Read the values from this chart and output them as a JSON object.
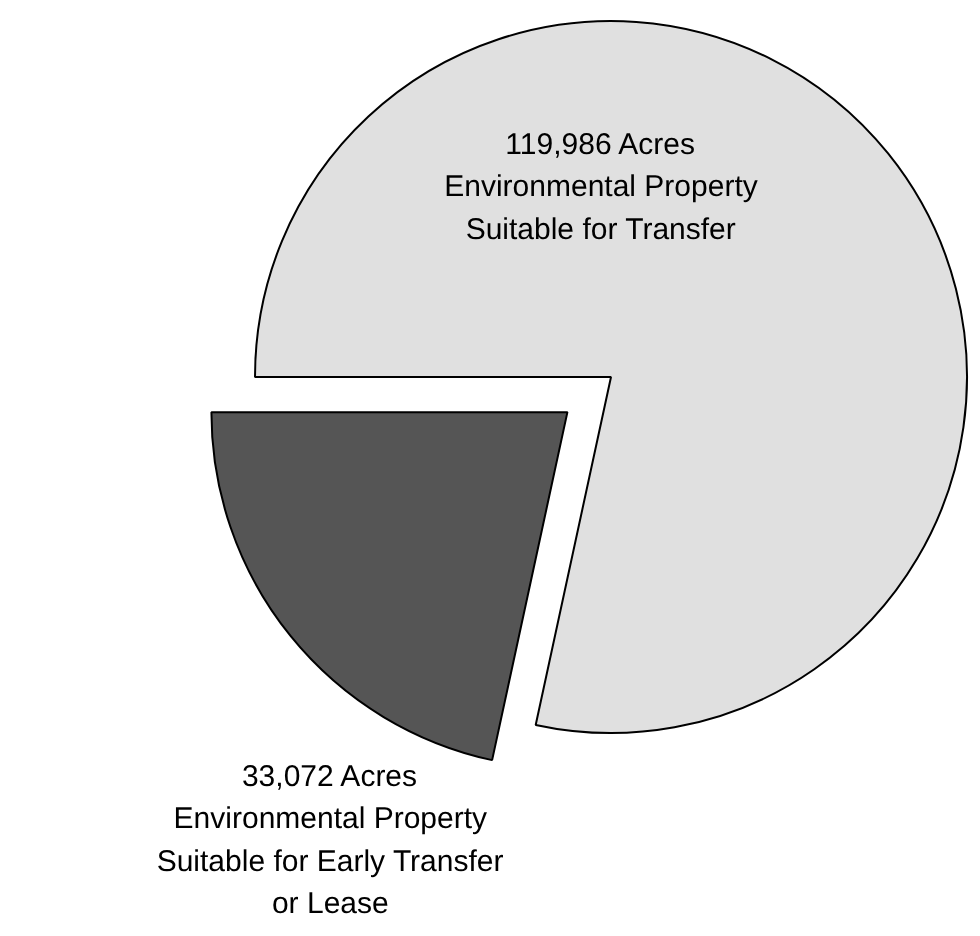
{
  "chart_data": {
    "type": "pie",
    "categories": [
      "Environmental Property\nSuitable for Transfer",
      "Environmental Property\nSuitable for Early Transfer\nor Lease"
    ],
    "values": [
      119986,
      33072
    ],
    "value_labels": [
      "119,986 Acres",
      "33,072 Acres"
    ],
    "colors": [
      "#e0e0e0",
      "#555555"
    ]
  }
}
